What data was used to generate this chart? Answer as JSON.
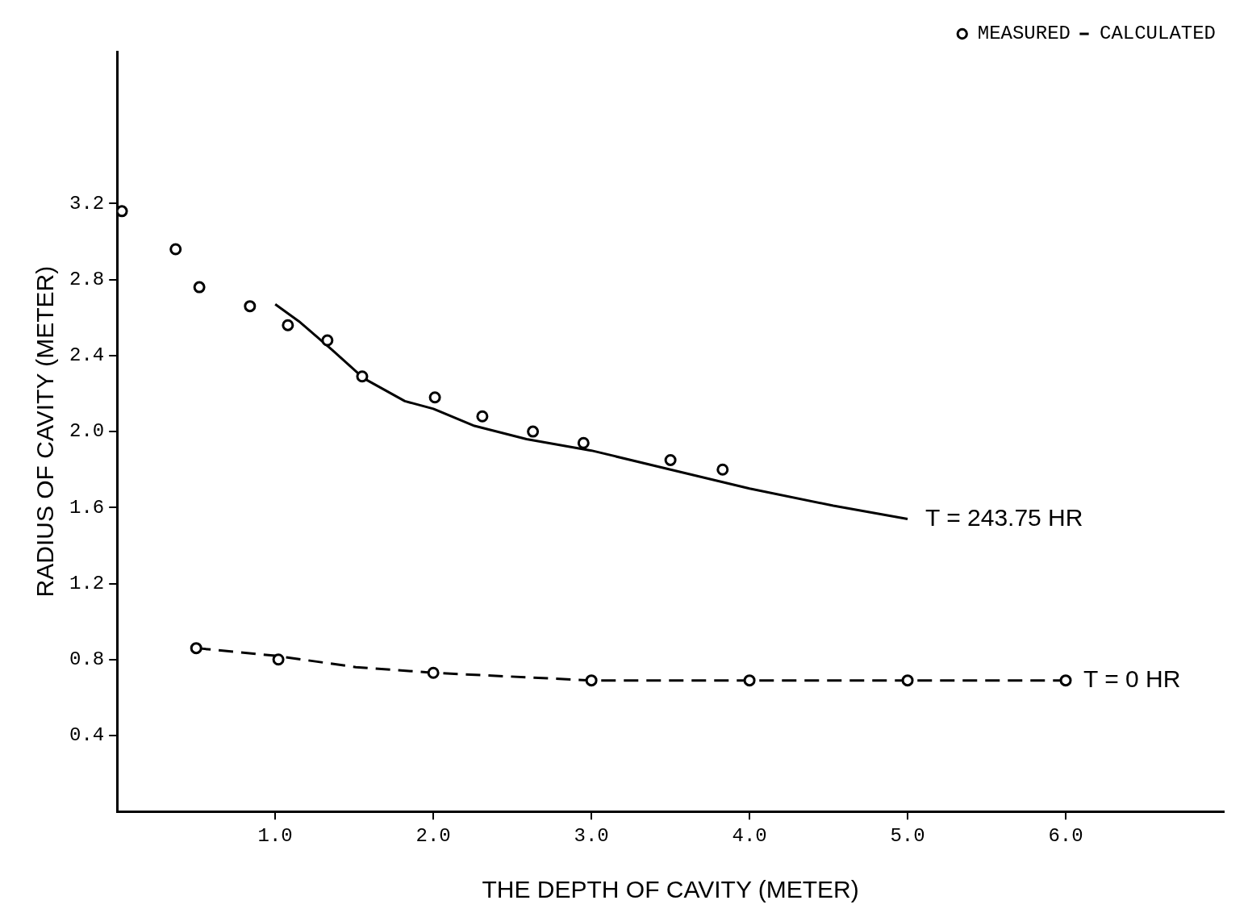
{
  "chart_data": {
    "type": "scatter",
    "xlabel": "THE DEPTH OF CAVITY (METER)",
    "ylabel": "RADIUS OF CAVITY (METER)",
    "xlim": [
      0,
      7.0
    ],
    "ylim": [
      0,
      4.0
    ],
    "xticks": [
      {
        "value": 1,
        "label": "1.0"
      },
      {
        "value": 2,
        "label": "2.0"
      },
      {
        "value": 3,
        "label": "3.0"
      },
      {
        "value": 4,
        "label": "4.0"
      },
      {
        "value": 5,
        "label": "5.0"
      },
      {
        "value": 6,
        "label": "6.0"
      }
    ],
    "yticks": [
      0.4,
      0.8,
      1.2,
      1.6,
      {
        "value": 2,
        "label": "2.0"
      },
      2.4,
      2.8,
      3.2
    ],
    "grid": false,
    "legend": "top right",
    "series": [
      {
        "name": "MEASURED",
        "type": "scatter",
        "marker": "circle",
        "color": "#000000",
        "x": [
          0.03,
          0.37,
          0.52,
          0.84,
          1.08,
          1.33,
          1.55,
          2.01,
          2.31,
          2.63,
          2.95,
          3.5,
          3.83
        ],
        "values": [
          3.16,
          2.96,
          2.76,
          2.66,
          2.56,
          2.48,
          2.29,
          2.18,
          2.08,
          2.0,
          1.94,
          1.85,
          1.8
        ]
      },
      {
        "name": "CALCULATED",
        "type": "line",
        "marker": "none",
        "line_style": "solid",
        "color": "#000000",
        "x": [
          1.0,
          1.15,
          1.36,
          1.56,
          1.82,
          2.0,
          2.26,
          2.59,
          3.0,
          3.5,
          4.0,
          4.53,
          5.0
        ],
        "values": [
          2.67,
          2.58,
          2.43,
          2.28,
          2.16,
          2.12,
          2.03,
          1.96,
          1.9,
          1.8,
          1.7,
          1.61,
          1.54
        ]
      },
      {
        "type": "scatter",
        "marker": "circle",
        "color": "#000000",
        "x": [
          0.5,
          1.02,
          2.0,
          3.0,
          4.0,
          5.0,
          6.0
        ],
        "values": [
          0.86,
          0.8,
          0.73,
          0.69,
          0.69,
          0.69,
          0.69
        ]
      },
      {
        "type": "line",
        "marker": "none",
        "line_style": "dashed",
        "color": "#000000",
        "x": [
          0.5,
          1.0,
          1.51,
          2.0,
          3.0,
          4.0,
          5.0,
          6.0
        ],
        "values": [
          0.86,
          0.82,
          0.76,
          0.73,
          0.69,
          0.69,
          0.69,
          0.69
        ]
      }
    ],
    "annotations": [
      {
        "text": "T = 243.75 HR",
        "x": 5.0,
        "y": 1.54
      },
      {
        "text": "T = 0 HR",
        "x": 6.0,
        "y": 0.69
      }
    ]
  }
}
